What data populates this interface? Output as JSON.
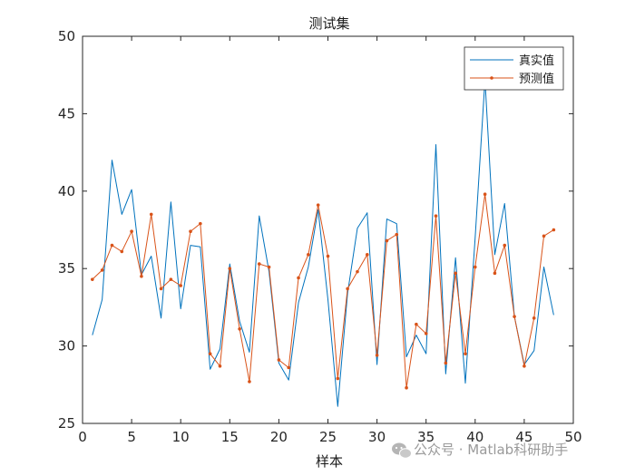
{
  "chart_data": {
    "type": "line",
    "title": "测试集",
    "xlabel": "样本",
    "ylabel": "",
    "xlim": [
      0,
      50
    ],
    "ylim": [
      25,
      50
    ],
    "xticks": [
      "0",
      "5",
      "10",
      "15",
      "20",
      "25",
      "30",
      "35",
      "40",
      "45",
      "50"
    ],
    "yticks": [
      "25",
      "30",
      "35",
      "40",
      "45",
      "50"
    ],
    "grid": false,
    "legend_position": "top-right",
    "x": [
      1,
      2,
      3,
      4,
      5,
      6,
      7,
      8,
      9,
      10,
      11,
      12,
      13,
      14,
      15,
      16,
      17,
      18,
      19,
      20,
      21,
      22,
      23,
      24,
      25,
      26,
      27,
      28,
      29,
      30,
      31,
      32,
      33,
      34,
      35,
      36,
      37,
      38,
      39,
      40,
      41,
      42,
      43,
      44,
      45,
      46,
      47,
      48
    ],
    "series": [
      {
        "name": "真实值",
        "color": "#0072BD",
        "marker": "none",
        "values": [
          30.7,
          33.0,
          42.0,
          38.5,
          40.1,
          34.6,
          35.8,
          31.8,
          39.3,
          32.4,
          36.5,
          36.4,
          28.5,
          29.8,
          35.3,
          31.6,
          29.6,
          38.4,
          34.8,
          28.9,
          27.8,
          32.8,
          35.1,
          38.8,
          33.0,
          26.1,
          33.4,
          37.6,
          38.6,
          28.8,
          38.2,
          37.9,
          29.3,
          30.7,
          29.5,
          43.0,
          28.2,
          35.7,
          27.6,
          37.0,
          47.2,
          35.9,
          39.2,
          31.9,
          28.8,
          29.7,
          35.1,
          32.0
        ]
      },
      {
        "name": "预测值",
        "color": "#D95319",
        "marker": "dot",
        "values": [
          34.3,
          34.9,
          36.5,
          36.1,
          37.4,
          34.5,
          38.5,
          33.7,
          34.3,
          33.9,
          37.4,
          37.9,
          29.5,
          28.7,
          35.0,
          31.1,
          27.7,
          35.3,
          35.1,
          29.1,
          28.6,
          34.4,
          35.9,
          39.1,
          35.8,
          27.9,
          33.7,
          34.8,
          35.9,
          29.4,
          36.8,
          37.2,
          27.3,
          31.4,
          30.8,
          38.4,
          28.9,
          34.7,
          29.5,
          35.1,
          39.8,
          34.7,
          36.5,
          31.9,
          28.7,
          31.8,
          37.1,
          37.5
        ]
      }
    ]
  },
  "watermark": {
    "text": "公众号 · Matlab科研助手"
  }
}
